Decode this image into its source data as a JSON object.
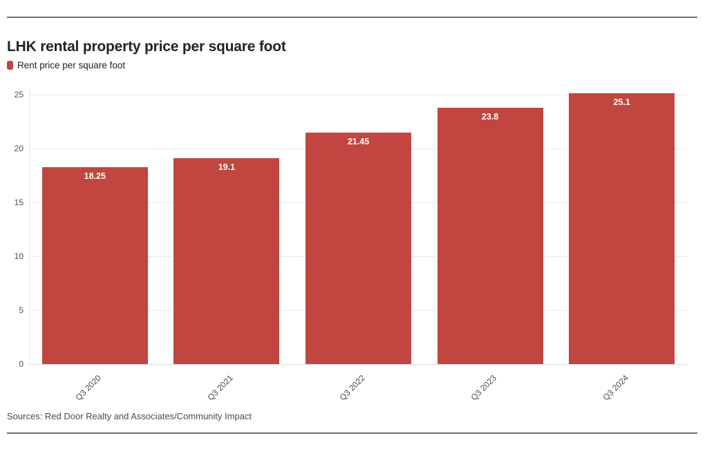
{
  "page": {
    "title": "LHK rental property price per square foot",
    "source": "Sources: Red Door Realty and Associates/Community Impact"
  },
  "legend": {
    "label": "Rent price per square foot",
    "color": "#c0463f"
  },
  "chart_data": {
    "type": "bar",
    "title": "LHK rental property price per square foot",
    "series_name": "Rent price per square foot",
    "categories": [
      "Q3 2020",
      "Q3 2021",
      "Q3 2022",
      "Q3 2023",
      "Q3 2024"
    ],
    "values": [
      18.25,
      19.1,
      21.45,
      23.8,
      25.1
    ],
    "value_labels": [
      "18.25",
      "19.1",
      "21.45",
      "23.8",
      "25.1"
    ],
    "xlabel": "",
    "ylabel": "",
    "ylim": [
      0,
      25.6
    ],
    "yticks": [
      0,
      5,
      10,
      15,
      20,
      25
    ],
    "grid": "horizontal",
    "legend_position": "top-left",
    "value_label_position": "inside-top",
    "bar_color": "#c0463f",
    "gridline_color": "#e7eaea",
    "source": "Sources: Red Door Realty and Associates/Community Impact"
  },
  "colors": {
    "bar": "#c0463f",
    "rule": "#6e6e6e",
    "title_text": "#232323",
    "axis_text": "#4f4f4f",
    "value_label_text": "#ffffff",
    "background": "#ffffff"
  }
}
